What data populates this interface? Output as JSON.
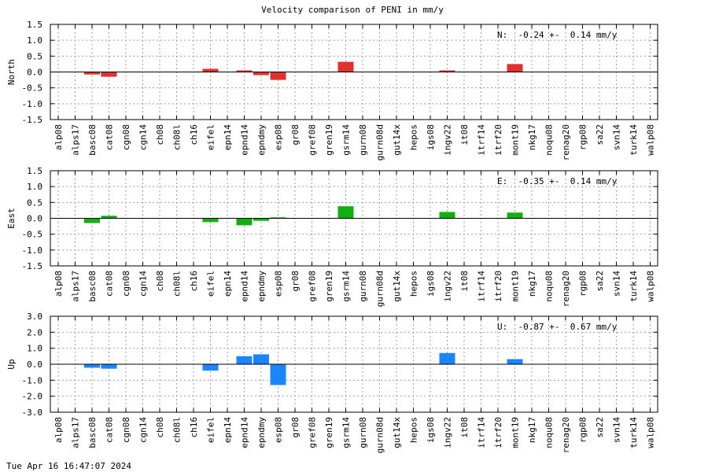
{
  "chart_data": {
    "title": "Velocity comparison of PENI in mm/y",
    "type": "bar",
    "categories": [
      "alp08",
      "alps17",
      "basc08",
      "cat08",
      "cgn08",
      "cgn14",
      "ch08",
      "ch08l",
      "ch16",
      "eifel",
      "epn14",
      "epnd14",
      "epndmy",
      "esp08",
      "gr08",
      "gref08",
      "gren19",
      "gsrm14",
      "gurn08",
      "gurn08d",
      "gut14x",
      "hepos",
      "igs08",
      "ingv22",
      "it08",
      "itrf14",
      "itrf20",
      "mont19",
      "nkg17",
      "noqu08",
      "renag20",
      "rgp08",
      "sa22",
      "svn14",
      "turk14",
      "walp08"
    ],
    "grid": true,
    "panels": [
      {
        "name": "North",
        "ylabel": "North",
        "ylim": [
          -1.5,
          1.5
        ],
        "yticks": [
          "1.5",
          "1.0",
          "0.5",
          "0.0",
          "-0.5",
          "-1.0",
          "-1.5"
        ],
        "color": "#e03030",
        "summary": "N:  -0.24 +-  0.14 mm/y",
        "values": [
          null,
          null,
          -0.08,
          -0.15,
          null,
          null,
          null,
          null,
          null,
          0.1,
          null,
          0.05,
          -0.1,
          -0.25,
          null,
          null,
          null,
          0.32,
          null,
          null,
          null,
          null,
          null,
          0.05,
          null,
          null,
          null,
          0.25,
          null,
          null,
          null,
          null,
          null,
          null,
          null,
          null
        ]
      },
      {
        "name": "East",
        "ylabel": "East",
        "ylim": [
          -1.5,
          1.5
        ],
        "yticks": [
          "1.5",
          "1.0",
          "0.5",
          "0.0",
          "-0.5",
          "-1.0",
          "-1.5"
        ],
        "color": "#10b010",
        "summary": "E:  -0.35 +-  0.14 mm/y",
        "values": [
          null,
          null,
          -0.15,
          0.08,
          null,
          null,
          null,
          null,
          null,
          -0.12,
          null,
          -0.22,
          -0.08,
          0.03,
          null,
          null,
          null,
          0.38,
          null,
          null,
          null,
          null,
          null,
          0.2,
          null,
          null,
          null,
          0.18,
          null,
          null,
          null,
          null,
          null,
          null,
          null,
          null
        ]
      },
      {
        "name": "Up",
        "ylabel": "Up",
        "ylim": [
          -3.0,
          3.0
        ],
        "yticks": [
          "3.0",
          "2.0",
          "1.0",
          "0.0",
          "-1.0",
          "-2.0",
          "-3.0"
        ],
        "color": "#1a85ff",
        "summary": "U:  -0.87 +-  0.67 mm/y",
        "values": [
          null,
          null,
          -0.22,
          -0.28,
          null,
          null,
          null,
          null,
          null,
          -0.4,
          null,
          0.5,
          0.62,
          -1.3,
          null,
          null,
          null,
          null,
          null,
          null,
          null,
          null,
          null,
          0.7,
          null,
          null,
          null,
          0.32,
          null,
          null,
          null,
          null,
          null,
          null,
          null,
          null
        ]
      }
    ]
  },
  "timestamp": "Tue Apr 16 16:47:07 2024"
}
